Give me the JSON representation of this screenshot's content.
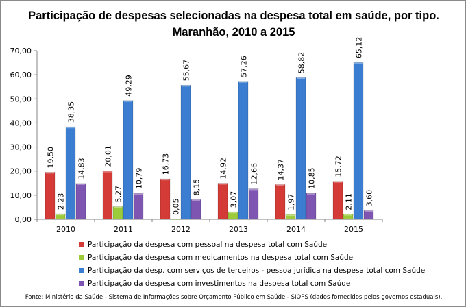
{
  "chart_data": {
    "type": "bar",
    "title": "Participação de despesas selecionadas na despesa total em saúde, por tipo. Maranhão, 2010 a 2015",
    "title_lines": [
      "Participação de despesas selecionadas na despesa total em saúde, por tipo.",
      "Maranhão, 2010 a 2015"
    ],
    "categories": [
      "2010",
      "2011",
      "2012",
      "2013",
      "2014",
      "2015"
    ],
    "ylim": [
      0,
      70
    ],
    "yticks": [
      "0,00",
      "10,00",
      "20,00",
      "30,00",
      "40,00",
      "50,00",
      "60,00",
      "70,00"
    ],
    "grid": false,
    "legend_position": "bottom",
    "series": [
      {
        "name": "Participação da despesa com pessoal na despesa total com Saúde",
        "color": "#d43a36",
        "values": [
          19.5,
          20.01,
          16.73,
          14.92,
          14.37,
          15.72
        ],
        "labels": [
          "19,50",
          "20,01",
          "16,73",
          "14,92",
          "14,37",
          "15,72"
        ]
      },
      {
        "name": "Participação da despesa com medicamentos na despesa total com Saúde",
        "color": "#9bcb3b",
        "values": [
          2.23,
          5.27,
          0.05,
          3.07,
          1.97,
          2.11
        ],
        "labels": [
          "2,23",
          "5,27",
          "0,05",
          "3,07",
          "1,97",
          "2,11"
        ]
      },
      {
        "name": "Participação da desp. com serviços de terceiros - pessoa jurídica na despesa total com Saúde",
        "color": "#3b7dd0",
        "values": [
          38.35,
          49.29,
          55.67,
          57.26,
          58.82,
          65.12
        ],
        "labels": [
          "38,35",
          "49,29",
          "55,67",
          "57,26",
          "58,82",
          "65,12"
        ]
      },
      {
        "name": "Participação da despesa com investimentos na despesa total com Saúde",
        "color": "#7e55b0",
        "values": [
          14.83,
          10.79,
          8.15,
          12.66,
          10.85,
          3.6
        ],
        "labels": [
          "14,83",
          "10,79",
          "8,15",
          "12,66",
          "10,85",
          "3,60"
        ]
      }
    ],
    "source": "Fonte: Ministério da Saúde - Sistema de Informações sobre Orçamento Público em Saúde - SIOPS (dados fornecidos pelos governos estaduais)."
  }
}
